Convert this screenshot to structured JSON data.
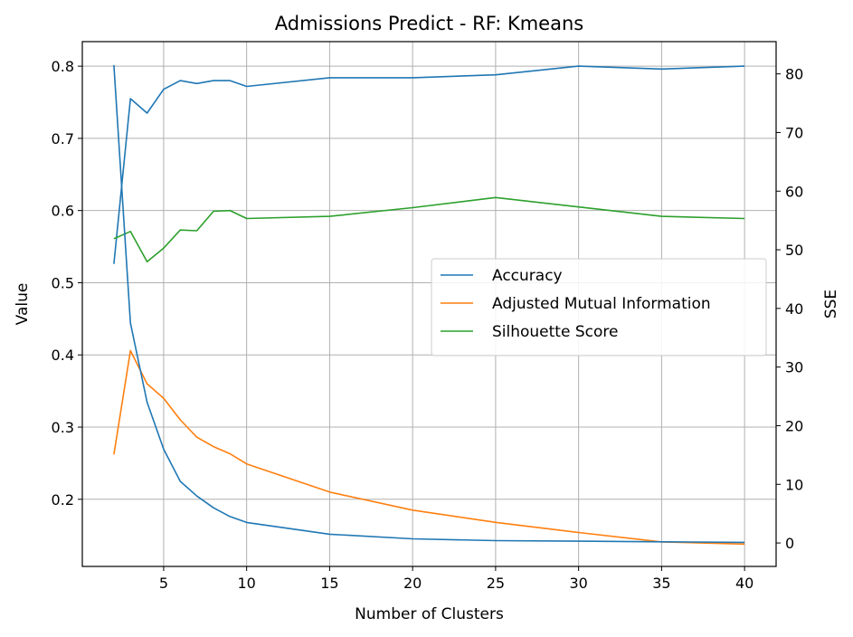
{
  "chart_data": {
    "type": "line",
    "title": "Admissions Predict - RF: Kmeans",
    "xlabel": "Number of Clusters",
    "ylabel": "Value",
    "y2label": "SSE",
    "xlim": [
      0.1,
      41.9
    ],
    "ylim": [
      0.107,
      0.834
    ],
    "y2lim": [
      -4.0,
      85.5
    ],
    "xticks": [
      5,
      10,
      15,
      20,
      25,
      30,
      35,
      40
    ],
    "yticks": [
      0.2,
      0.3,
      0.4,
      0.5,
      0.6,
      0.7,
      0.8
    ],
    "y2ticks": [
      0,
      10,
      20,
      30,
      40,
      50,
      60,
      70,
      80
    ],
    "grid": true,
    "legend_position": "center-right",
    "x": [
      2,
      3,
      4,
      5,
      6,
      7,
      8,
      9,
      10,
      15,
      20,
      25,
      30,
      35,
      40
    ],
    "series": [
      {
        "name": "Accuracy",
        "axis": "left",
        "color": "#1f77b4",
        "values": [
          0.526,
          0.755,
          0.735,
          0.768,
          0.78,
          0.776,
          0.78,
          0.78,
          0.772,
          0.784,
          0.784,
          0.788,
          0.8,
          0.796,
          0.8
        ]
      },
      {
        "name": "Adjusted Mutual Information",
        "axis": "left",
        "color": "#ff7f0e",
        "values": [
          0.262,
          0.406,
          0.36,
          0.34,
          0.31,
          0.286,
          0.273,
          0.263,
          0.249,
          0.21,
          0.185,
          0.168,
          0.154,
          0.141,
          0.138
        ]
      },
      {
        "name": "Silhouette Score",
        "axis": "left",
        "color": "#2ca02c",
        "values": [
          0.561,
          0.571,
          0.529,
          0.548,
          0.573,
          0.572,
          0.599,
          0.6,
          0.589,
          0.592,
          0.604,
          0.618,
          0.605,
          0.592,
          0.589
        ]
      },
      {
        "axis": "right",
        "color": "#1f77b4",
        "values": [
          81.5,
          37.5,
          24.0,
          16.0,
          10.5,
          8.0,
          6.0,
          4.5,
          3.5,
          1.5,
          0.7,
          0.4,
          0.3,
          0.2,
          0.1
        ]
      }
    ]
  }
}
